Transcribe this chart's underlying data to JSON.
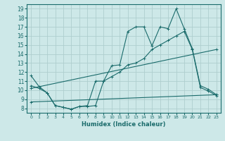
{
  "xlabel": "Humidex (Indice chaleur)",
  "bg_color": "#cde8e8",
  "grid_color": "#aecece",
  "line_color": "#1a6b6b",
  "spine_color": "#1a6b6b",
  "xlim": [
    -0.5,
    23.5
  ],
  "ylim": [
    7.5,
    19.5
  ],
  "xticks": [
    0,
    1,
    2,
    3,
    4,
    5,
    6,
    7,
    8,
    9,
    10,
    11,
    12,
    13,
    14,
    15,
    16,
    17,
    18,
    19,
    20,
    21,
    22,
    23
  ],
  "yticks": [
    8,
    9,
    10,
    11,
    12,
    13,
    14,
    15,
    16,
    17,
    18,
    19
  ],
  "line1_x": [
    0,
    1,
    2,
    3,
    4,
    5,
    6,
    7,
    8,
    9,
    10,
    11,
    12,
    13,
    14,
    15,
    16,
    17,
    18,
    19,
    20,
    21,
    22,
    23
  ],
  "line1_y": [
    11.6,
    10.4,
    9.7,
    8.3,
    8.1,
    7.9,
    8.2,
    8.2,
    8.3,
    11.0,
    12.7,
    12.8,
    16.5,
    17.0,
    17.0,
    14.9,
    17.0,
    16.8,
    19.0,
    16.8,
    14.6,
    10.5,
    10.1,
    9.5
  ],
  "line2_x": [
    0,
    1,
    2,
    3,
    4,
    5,
    6,
    7,
    8,
    9,
    10,
    11,
    12,
    13,
    14,
    15,
    16,
    17,
    18,
    19,
    20,
    21,
    22,
    23
  ],
  "line2_y": [
    10.5,
    10.2,
    9.7,
    8.3,
    8.1,
    7.9,
    8.2,
    8.3,
    11.0,
    11.0,
    11.5,
    12.0,
    12.8,
    13.0,
    13.5,
    14.5,
    15.0,
    15.5,
    16.0,
    16.5,
    14.5,
    10.3,
    9.9,
    9.4
  ],
  "line3_x": [
    0,
    23
  ],
  "line3_y": [
    10.2,
    14.5
  ],
  "line4_x": [
    0,
    23
  ],
  "line4_y": [
    8.7,
    9.5
  ]
}
